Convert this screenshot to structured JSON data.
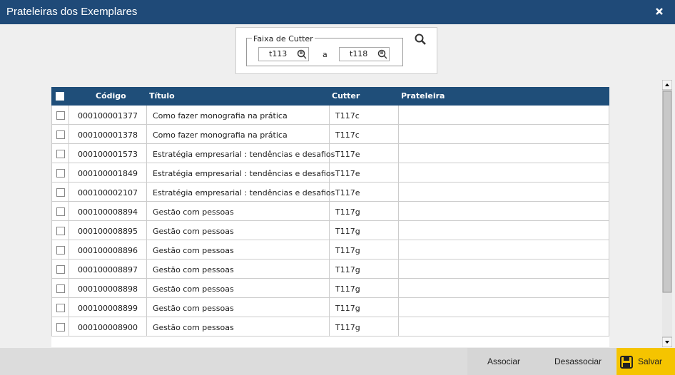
{
  "header": {
    "title": "Prateleiras dos Exemplares"
  },
  "filter": {
    "legend": "Faixa de Cutter",
    "from": "t113",
    "separator": "a",
    "to": "t118"
  },
  "table": {
    "columns": [
      "Código",
      "Título",
      "Cutter",
      "Prateleira"
    ],
    "rows": [
      [
        "000100001377",
        "Como fazer monografia na prática",
        "T117c"
      ],
      [
        "000100001378",
        "Como fazer monografia na prática",
        "T117c"
      ],
      [
        "000100001573",
        "Estratégia empresarial : tendências e desafios",
        "T117e"
      ],
      [
        "000100001849",
        "Estratégia empresarial : tendências e desafios",
        "T117e"
      ],
      [
        "000100002107",
        "Estratégia empresarial : tendências e desafios",
        "T117e"
      ],
      [
        "000100008894",
        "Gestão com pessoas",
        "T117g"
      ],
      [
        "000100008895",
        "Gestão com pessoas",
        "T117g"
      ],
      [
        "000100008896",
        "Gestão com pessoas",
        "T117g"
      ],
      [
        "000100008897",
        "Gestão com pessoas",
        "T117g"
      ],
      [
        "000100008898",
        "Gestão com pessoas",
        "T117g"
      ],
      [
        "000100008899",
        "Gestão com pessoas",
        "T117g"
      ],
      [
        "000100008900",
        "Gestão com pessoas",
        "T117g"
      ]
    ]
  },
  "buttons": [
    "Associar",
    "Desassociar",
    "Salvar"
  ]
}
